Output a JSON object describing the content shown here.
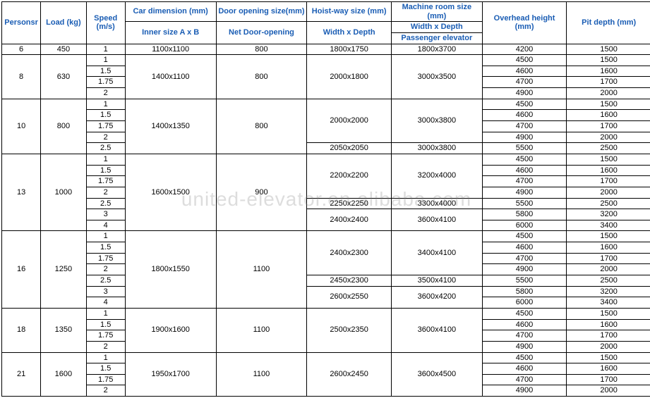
{
  "watermark": "united-elevator.en.alibaba.com",
  "headers": {
    "persons": "Personsr",
    "load": "Load (kg)",
    "speed": "Speed (m/s)",
    "car_top": "Car dimension (mm)",
    "car_sub": "Inner size   A x B",
    "door_top": "Door opening size(mm)",
    "door_sub": "Net Door-opening",
    "hoist_top": "Hoist-way size (mm)",
    "hoist_sub": "Width x Depth",
    "machine_top": "Machine room size (mm)",
    "machine_sub1": "Width x Depth",
    "machine_sub2": "Passenger elevator",
    "overhead": "Overhead height (mm)",
    "pit": "Pit depth (mm)"
  },
  "data": {
    "g6": {
      "persons": "6",
      "load": "450",
      "speed": [
        "1"
      ],
      "car": "1100x1100",
      "door": "800",
      "hoist": "1800x1750",
      "machine": "1800x3700",
      "oh": [
        "4200"
      ],
      "pit": [
        "1500"
      ]
    },
    "g8": {
      "persons": "8",
      "load": "630",
      "speed": [
        "1",
        "1.5",
        "1.75",
        "2"
      ],
      "car": "1400x1100",
      "door": "800",
      "hoist": "2000x1800",
      "machine": "3000x3500",
      "oh": [
        "4500",
        "4600",
        "4700",
        "4900"
      ],
      "pit": [
        "1500",
        "1600",
        "1700",
        "2000"
      ]
    },
    "g10": {
      "persons": "10",
      "load": "800",
      "speed": [
        "1",
        "1.5",
        "1.75",
        "2",
        "2.5"
      ],
      "car": "1400x1350",
      "door": "800",
      "hoist_a": "2000x2000",
      "hoist_b": "2050x2050",
      "machine_a": "3000x3800",
      "machine_b": "3000x3800",
      "oh": [
        "4500",
        "4600",
        "4700",
        "4900",
        "5500"
      ],
      "pit": [
        "1500",
        "1600",
        "1700",
        "2000",
        "2500"
      ]
    },
    "g13": {
      "persons": "13",
      "load": "1000",
      "speed": [
        "1",
        "1.5",
        "1.75",
        "2",
        "2.5",
        "3",
        "4"
      ],
      "car": "1600x1500",
      "door": "900",
      "hoist_a": "2200x2200",
      "hoist_b": "2250x2250",
      "hoist_c": "2400x2400",
      "machine_a": "3200x4000",
      "machine_b": "3300x4000",
      "machine_c": "3600x4100",
      "oh": [
        "4500",
        "4600",
        "4700",
        "4900",
        "5500",
        "5800",
        "6000"
      ],
      "pit": [
        "1500",
        "1600",
        "1700",
        "2000",
        "2500",
        "3200",
        "3400"
      ]
    },
    "g16": {
      "persons": "16",
      "load": "1250",
      "speed": [
        "1",
        "1.5",
        "1.75",
        "2",
        "2.5",
        "3",
        "4"
      ],
      "car": "1800x1550",
      "door": "1100",
      "hoist_a": "2400x2300",
      "hoist_b": "2450x2300",
      "hoist_c": "2600x2550",
      "machine_a": "3400x4100",
      "machine_b": "3500x4100",
      "machine_c": "3600x4200",
      "oh": [
        "4500",
        "4600",
        "4700",
        "4900",
        "5500",
        "5800",
        "6000"
      ],
      "pit": [
        "1500",
        "1600",
        "1700",
        "2000",
        "2500",
        "3200",
        "3400"
      ]
    },
    "g18": {
      "persons": "18",
      "load": "1350",
      "speed": [
        "1",
        "1.5",
        "1.75",
        "2"
      ],
      "car": "1900x1600",
      "door": "1100",
      "hoist": "2500x2350",
      "machine": "3600x4100",
      "oh": [
        "4500",
        "4600",
        "4700",
        "4900"
      ],
      "pit": [
        "1500",
        "1600",
        "1700",
        "2000"
      ]
    },
    "g21": {
      "persons": "21",
      "load": "1600",
      "speed": [
        "1",
        "1.5",
        "1.75",
        "2"
      ],
      "car": "1950x1700",
      "door": "1100",
      "hoist": "2600x2450",
      "machine": "3600x4500",
      "oh": [
        "4500",
        "4600",
        "4700",
        "4900"
      ],
      "pit": [
        "1500",
        "1600",
        "1700",
        "2000"
      ]
    }
  }
}
